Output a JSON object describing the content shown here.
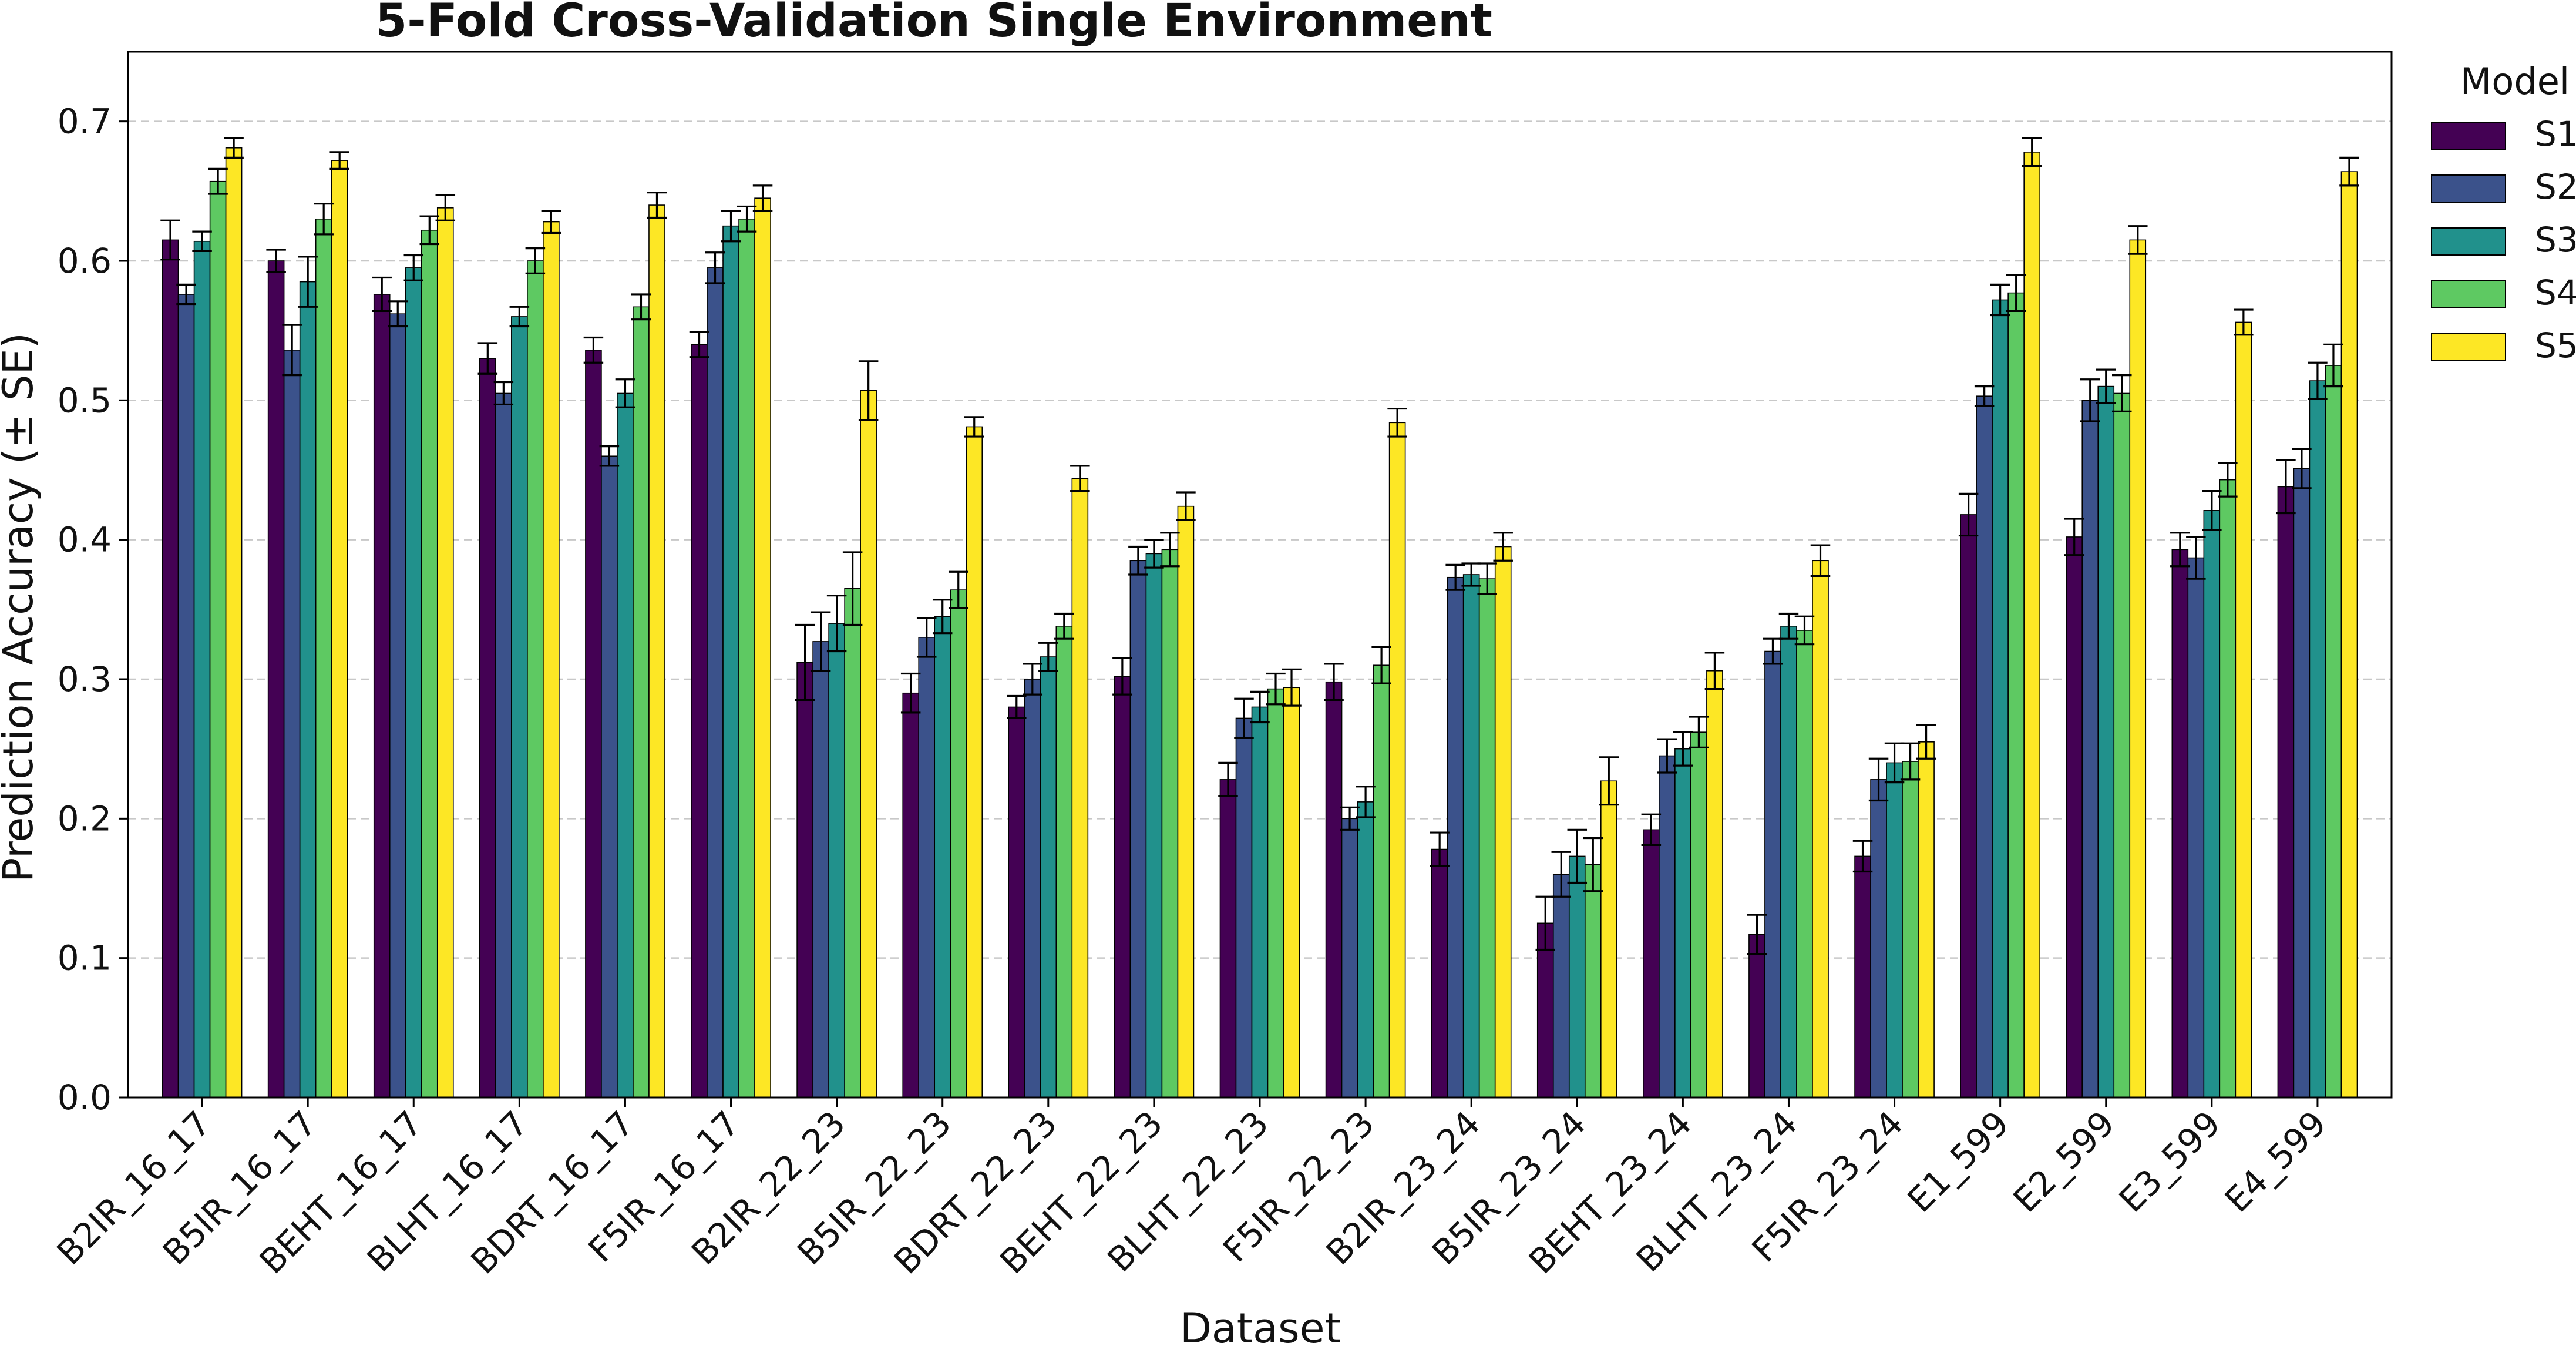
{
  "chart_data": {
    "type": "bar",
    "title": "5-Fold Cross-Validation Single Environment",
    "xlabel": "Dataset",
    "ylabel": "Prediction Accuracy (± SE)",
    "ylim": [
      0,
      0.75
    ],
    "yticks": [
      "0.0",
      "0.1",
      "0.2",
      "0.3",
      "0.4",
      "0.5",
      "0.6",
      "0.7"
    ],
    "grid": "horizontal dashed",
    "legend_title": "Model",
    "legend_position": "right",
    "categories": [
      "B2IR_16_17",
      "B5IR_16_17",
      "BEHT_16_17",
      "BLHT_16_17",
      "BDRT_16_17",
      "F5IR_16_17",
      "B2IR_22_23",
      "B5IR_22_23",
      "BDRT_22_23",
      "BEHT_22_23",
      "BLHT_22_23",
      "F5IR_22_23",
      "B2IR_23_24",
      "B5IR_23_24",
      "BEHT_23_24",
      "BLHT_23_24",
      "F5IR_23_24",
      "E1_599",
      "E2_599",
      "E3_599",
      "E4_599"
    ],
    "series": [
      {
        "name": "S1",
        "color": "#440154",
        "values": [
          0.615,
          0.6,
          0.576,
          0.53,
          0.536,
          0.54,
          0.312,
          0.29,
          0.28,
          0.302,
          0.228,
          0.298,
          0.178,
          0.125,
          0.192,
          0.117,
          0.173,
          0.418,
          0.402,
          0.393,
          0.438
        ],
        "errors": [
          0.014,
          0.008,
          0.012,
          0.011,
          0.009,
          0.009,
          0.027,
          0.014,
          0.008,
          0.013,
          0.012,
          0.013,
          0.012,
          0.019,
          0.011,
          0.014,
          0.011,
          0.015,
          0.013,
          0.012,
          0.019
        ]
      },
      {
        "name": "S2",
        "color": "#3b528b",
        "values": [
          0.576,
          0.536,
          0.562,
          0.505,
          0.46,
          0.595,
          0.327,
          0.33,
          0.3,
          0.385,
          0.272,
          0.2,
          0.373,
          0.16,
          0.245,
          0.32,
          0.228,
          0.503,
          0.5,
          0.387,
          0.451
        ],
        "errors": [
          0.007,
          0.018,
          0.009,
          0.008,
          0.007,
          0.011,
          0.021,
          0.014,
          0.011,
          0.01,
          0.014,
          0.008,
          0.009,
          0.016,
          0.012,
          0.009,
          0.015,
          0.007,
          0.015,
          0.015,
          0.014
        ]
      },
      {
        "name": "S3",
        "color": "#21918c",
        "values": [
          0.614,
          0.585,
          0.595,
          0.56,
          0.505,
          0.625,
          0.34,
          0.345,
          0.316,
          0.39,
          0.28,
          0.212,
          0.375,
          0.173,
          0.25,
          0.338,
          0.24,
          0.572,
          0.51,
          0.421,
          0.514
        ],
        "errors": [
          0.007,
          0.018,
          0.009,
          0.007,
          0.01,
          0.011,
          0.02,
          0.012,
          0.01,
          0.01,
          0.011,
          0.011,
          0.008,
          0.019,
          0.012,
          0.009,
          0.014,
          0.011,
          0.012,
          0.014,
          0.013
        ]
      },
      {
        "name": "S4",
        "color": "#5ec962",
        "values": [
          0.657,
          0.63,
          0.622,
          0.6,
          0.567,
          0.63,
          0.365,
          0.364,
          0.338,
          0.393,
          0.293,
          0.31,
          0.372,
          0.167,
          0.262,
          0.335,
          0.241,
          0.577,
          0.505,
          0.443,
          0.525
        ],
        "errors": [
          0.009,
          0.011,
          0.01,
          0.009,
          0.009,
          0.009,
          0.026,
          0.013,
          0.009,
          0.012,
          0.011,
          0.013,
          0.011,
          0.019,
          0.011,
          0.01,
          0.013,
          0.013,
          0.013,
          0.012,
          0.015
        ]
      },
      {
        "name": "S5",
        "color": "#fde725",
        "values": [
          0.681,
          0.672,
          0.638,
          0.628,
          0.64,
          0.645,
          0.507,
          0.481,
          0.444,
          0.424,
          0.294,
          0.484,
          0.395,
          0.227,
          0.306,
          0.385,
          0.255,
          0.678,
          0.615,
          0.556,
          0.664
        ],
        "errors": [
          0.007,
          0.006,
          0.009,
          0.008,
          0.009,
          0.009,
          0.021,
          0.007,
          0.009,
          0.01,
          0.013,
          0.01,
          0.01,
          0.017,
          0.013,
          0.011,
          0.012,
          0.01,
          0.01,
          0.009,
          0.01
        ]
      }
    ]
  }
}
